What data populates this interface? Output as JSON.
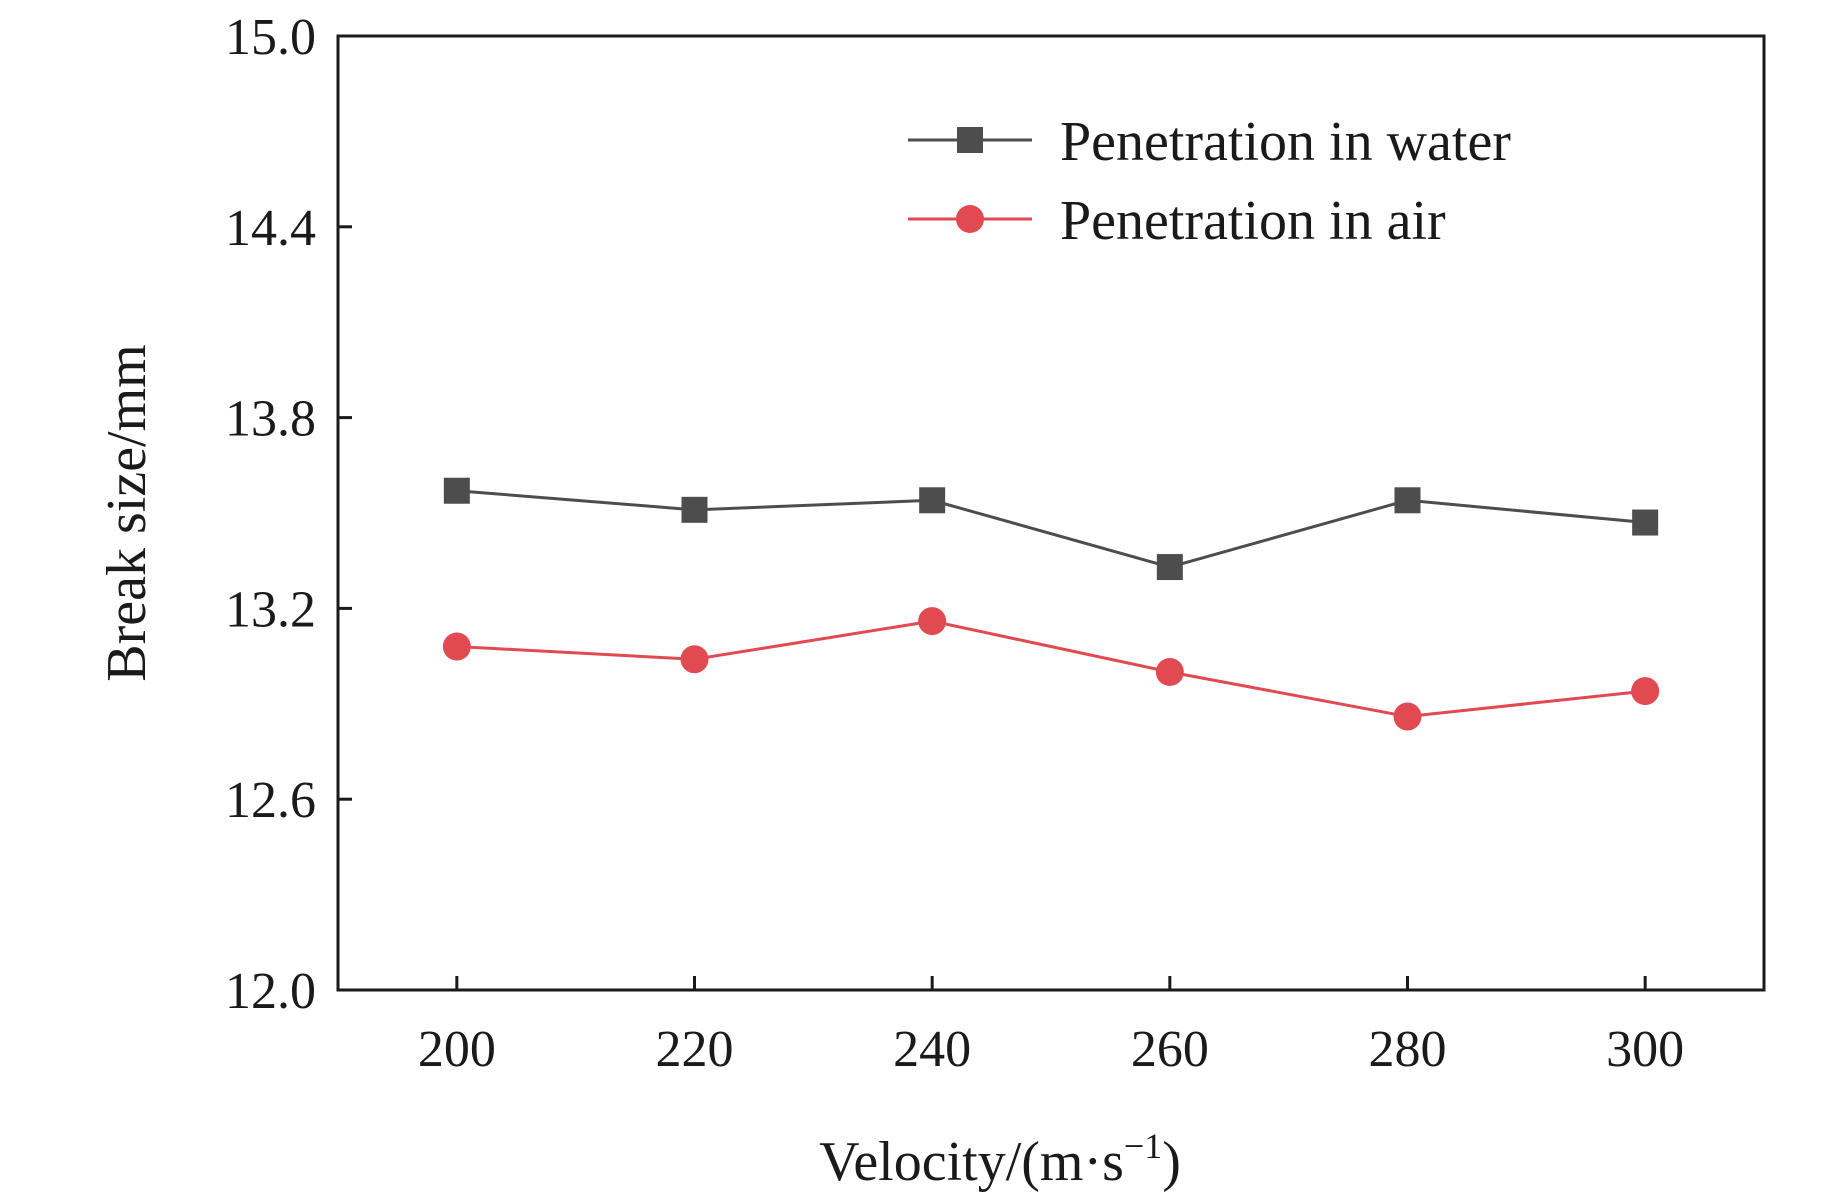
{
  "chart_data": {
    "type": "line",
    "xlabel": "Velocity/(m·s",
    "xlabel_sup": "−1",
    "xlabel_suffix": ")",
    "ylabel": "Break size/mm",
    "x": [
      200,
      220,
      240,
      260,
      280,
      300
    ],
    "x_tick_labels": [
      "200",
      "220",
      "240",
      "260",
      "280",
      "300"
    ],
    "xlim": [
      190,
      310
    ],
    "ylim": [
      12.0,
      15.0
    ],
    "y_ticks": [
      12.0,
      12.6,
      13.2,
      13.8,
      14.4,
      15.0
    ],
    "y_tick_labels": [
      "12.0",
      "12.6",
      "13.2",
      "13.8",
      "14.4",
      "15.0"
    ],
    "grid": false,
    "legend_position": "top-right",
    "series": [
      {
        "name": "Penetration in water",
        "marker": "square",
        "color": "#4d4d4d",
        "values": [
          13.57,
          13.51,
          13.54,
          13.33,
          13.54,
          13.47
        ]
      },
      {
        "name": "Penetration in air",
        "marker": "circle",
        "color": "#e04a50",
        "values": [
          13.08,
          13.04,
          13.16,
          13.0,
          12.86,
          12.94
        ]
      }
    ]
  }
}
